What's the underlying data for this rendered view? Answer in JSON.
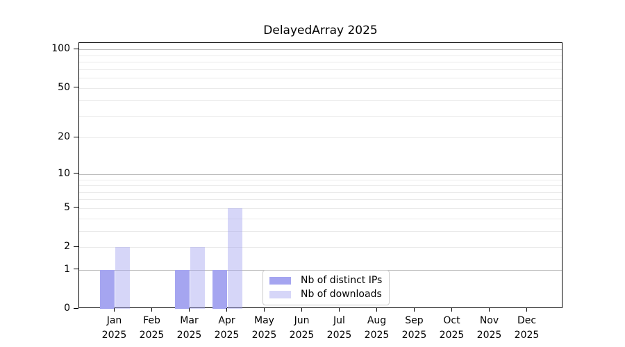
{
  "chart_data": {
    "type": "bar",
    "title": "DelayedArray 2025",
    "categories": [
      "Jan",
      "Feb",
      "Mar",
      "Apr",
      "May",
      "Jun",
      "Jul",
      "Aug",
      "Sep",
      "Oct",
      "Nov",
      "Dec"
    ],
    "category_year": "2025",
    "series": [
      {
        "name": "Nb of distinct IPs",
        "color": "#a5a5f0",
        "alpha": 1.0,
        "values": [
          1,
          0,
          1,
          1,
          0,
          0,
          0,
          0,
          0,
          0,
          0,
          0
        ]
      },
      {
        "name": "Nb of downloads",
        "color": "#a5a5f0",
        "alpha": 0.45,
        "values": [
          2,
          0,
          2,
          5,
          0,
          0,
          0,
          0,
          0,
          0,
          0,
          0
        ]
      }
    ],
    "xlabel": "",
    "ylabel": "",
    "yaxis": {
      "scale": "log1p",
      "ticks": [
        0,
        1,
        2,
        5,
        10,
        20,
        50,
        100
      ],
      "ylim": [
        0,
        112
      ],
      "major_grid": [
        1,
        10,
        100
      ],
      "minor_grid": [
        2,
        3,
        4,
        5,
        6,
        7,
        8,
        9,
        20,
        30,
        40,
        50,
        60,
        70,
        80,
        90
      ]
    },
    "grid": "horizontal",
    "legend": {
      "position": "inside-bottom-center",
      "entries": [
        "Nb of distinct IPs",
        "Nb of downloads"
      ]
    },
    "colors": {
      "bar_base": "#a5a5f0",
      "grid_major": "#bdbdbd",
      "grid_minor": "#eaeaea",
      "axis": "#000000",
      "background": "#ffffff"
    }
  }
}
